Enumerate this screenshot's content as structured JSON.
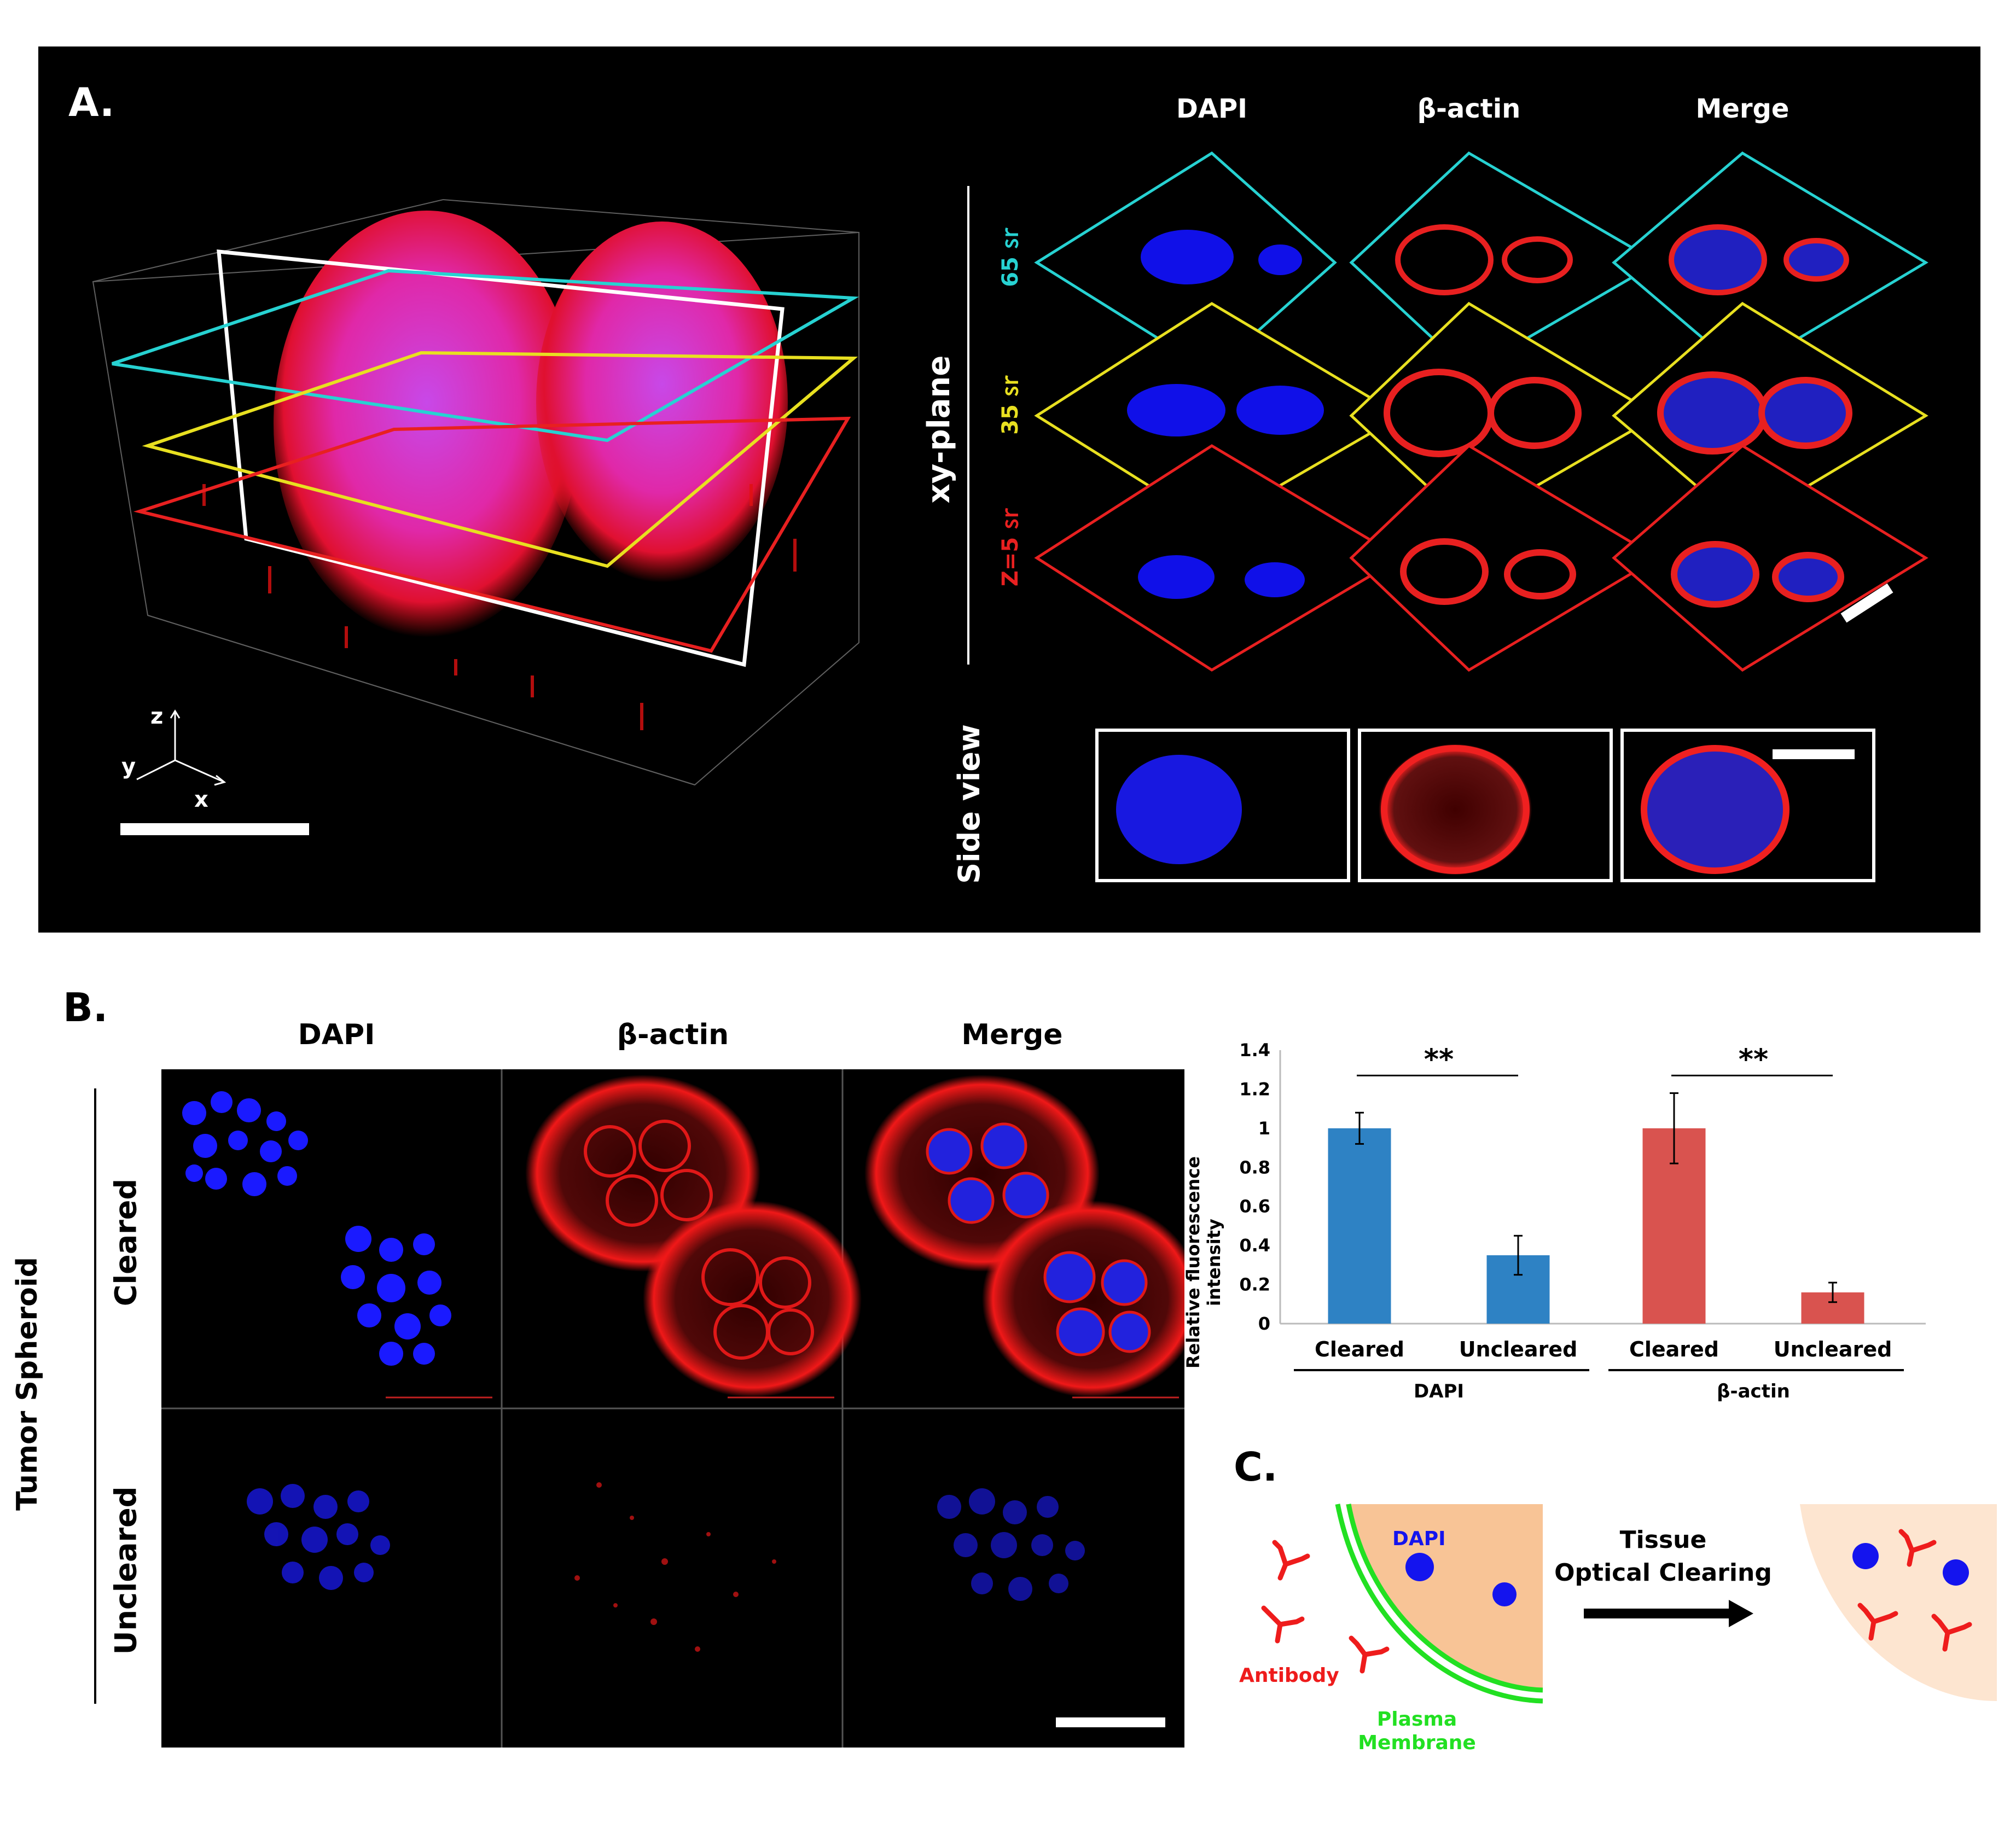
{
  "panel_a": {
    "label": "A.",
    "headers": [
      "DAPI",
      "β-actin",
      "Merge"
    ],
    "xy_plane_label": "xy-plane",
    "side_view_label": "Side view",
    "planes": [
      {
        "label": "65 ㏛",
        "color": "#27d2d2"
      },
      {
        "label": "35 ㏛",
        "color": "#e8e020"
      },
      {
        "label": "Z=5 ㏛",
        "color": "#e82020"
      }
    ],
    "axes": {
      "z": "z",
      "y": "y",
      "x": "x"
    }
  },
  "panel_b": {
    "label": "B.",
    "headers": [
      "DAPI",
      "β-actin",
      "Merge"
    ],
    "group_label": "Tumor Spheroid",
    "rows": [
      "Cleared",
      "Uncleared"
    ]
  },
  "chart_data": {
    "type": "bar",
    "title": "",
    "xlabel": "",
    "ylabel": "Relative fluorescence intensity",
    "ylim": [
      0,
      1.4
    ],
    "yticks": [
      "0",
      "0.2",
      "0.4",
      "0.6",
      "0.8",
      "1",
      "1.2",
      "1.4"
    ],
    "categories": [
      "Cleared",
      "Uncleared",
      "Cleared",
      "Uncleared"
    ],
    "groups": [
      "DAPI",
      "β-actin"
    ],
    "values": [
      1.0,
      0.35,
      1.0,
      0.16
    ],
    "errors": [
      0.08,
      0.1,
      0.18,
      0.05
    ],
    "colors": [
      "#2e82c4",
      "#2e82c4",
      "#d9534f",
      "#d9534f"
    ],
    "significance": [
      "**",
      "**"
    ]
  },
  "panel_c": {
    "label": "C.",
    "dapi_label": "DAPI",
    "antibody_label": "Antibody",
    "membrane_label_1": "Plasma",
    "membrane_label_2": "Membrane",
    "arrow_label_1": "Tissue",
    "arrow_label_2": "Optical Clearing"
  }
}
